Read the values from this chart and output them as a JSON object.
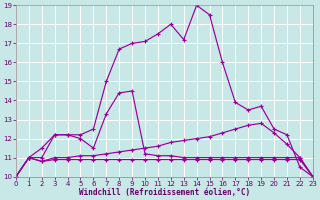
{
  "xlabel": "Windchill (Refroidissement éolien,°C)",
  "background_color": "#c8e8e8",
  "grid_color": "#ffffff",
  "line_color": "#990099",
  "xlim": [
    0,
    23
  ],
  "ylim": [
    10,
    19
  ],
  "xticks": [
    0,
    1,
    2,
    3,
    4,
    5,
    6,
    7,
    8,
    9,
    10,
    11,
    12,
    13,
    14,
    15,
    16,
    17,
    18,
    19,
    20,
    21,
    22,
    23
  ],
  "yticks": [
    10,
    11,
    12,
    13,
    14,
    15,
    16,
    17,
    18,
    19
  ],
  "lines": [
    {
      "x": [
        0,
        1,
        2,
        3,
        4,
        5,
        6,
        7,
        8,
        9,
        10,
        11,
        12,
        13,
        14,
        15,
        16,
        17,
        18,
        19,
        20,
        21,
        22,
        23
      ],
      "y": [
        10,
        11,
        11.5,
        12.2,
        12.2,
        12.2,
        12.5,
        15.0,
        16.7,
        17.0,
        17.1,
        17.5,
        18.0,
        17.2,
        19.0,
        18.5,
        16.0,
        13.9,
        13.5,
        13.7,
        12.5,
        12.2,
        10.5,
        10.0
      ]
    },
    {
      "x": [
        0,
        1,
        2,
        3,
        4,
        5,
        6,
        7,
        8,
        9,
        10,
        11,
        12,
        13,
        14,
        15,
        16,
        17,
        18,
        19,
        20,
        21,
        22,
        23
      ],
      "y": [
        10,
        11,
        11.0,
        12.2,
        12.2,
        12.0,
        11.5,
        13.3,
        14.4,
        14.5,
        11.2,
        11.1,
        11.1,
        11.0,
        11.0,
        11.0,
        11.0,
        11.0,
        11.0,
        11.0,
        11.0,
        11.0,
        11.0,
        10.0
      ]
    },
    {
      "x": [
        0,
        1,
        2,
        3,
        4,
        5,
        6,
        7,
        8,
        9,
        10,
        11,
        12,
        13,
        14,
        15,
        16,
        17,
        18,
        19,
        20,
        21,
        22,
        23
      ],
      "y": [
        10.0,
        11.0,
        10.8,
        11.0,
        11.0,
        11.1,
        11.1,
        11.2,
        11.3,
        11.4,
        11.5,
        11.6,
        11.8,
        11.9,
        12.0,
        12.1,
        12.3,
        12.5,
        12.7,
        12.8,
        12.3,
        11.7,
        11.0,
        10.0
      ]
    },
    {
      "x": [
        0,
        1,
        2,
        3,
        4,
        5,
        6,
        7,
        8,
        9,
        10,
        11,
        12,
        13,
        14,
        15,
        16,
        17,
        18,
        19,
        20,
        21,
        22,
        23
      ],
      "y": [
        10.0,
        11.0,
        10.8,
        10.9,
        10.9,
        10.9,
        10.9,
        10.9,
        10.9,
        10.9,
        10.9,
        10.9,
        10.9,
        10.9,
        10.9,
        10.9,
        10.9,
        10.9,
        10.9,
        10.9,
        10.9,
        10.9,
        10.9,
        10.0
      ]
    }
  ]
}
